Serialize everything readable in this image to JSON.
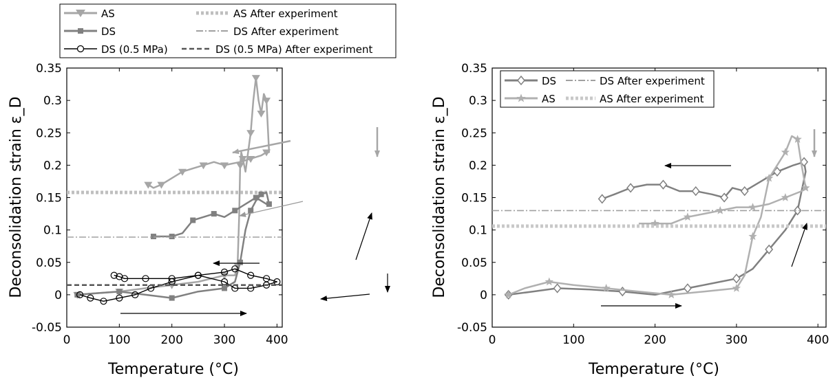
{
  "chart_data": [
    {
      "type": "line",
      "xlabel": "Temperature (°C)",
      "ylabel": "Deconsolidation strain ε_D",
      "xlim": [
        0,
        410
      ],
      "ylim": [
        -0.05,
        0.35
      ],
      "xticks": [
        0,
        100,
        200,
        300,
        400
      ],
      "yticks": [
        -0.05,
        0,
        0.05,
        0.1,
        0.15,
        0.2,
        0.25,
        0.3,
        0.35
      ],
      "ytick_labels": [
        "-0.05",
        "0",
        "0.05",
        "0.1",
        "0.15",
        "0.2",
        "0.25",
        "0.3",
        "0.35"
      ],
      "legend_position": "top (above axes)",
      "series": [
        {
          "name": "AS",
          "color": "#a6a6a6",
          "marker": "triangle-down",
          "style": "solid",
          "x": [
            20,
            50,
            100,
            150,
            200,
            250,
            300,
            320,
            325,
            328,
            330,
            332,
            335,
            340,
            350,
            355,
            360,
            365,
            370,
            375,
            380,
            385,
            380,
            370,
            350,
            330,
            300,
            280,
            260,
            240,
            220,
            200,
            180,
            165,
            155
          ],
          "y": [
            0,
            0.002,
            0.005,
            0.01,
            0.015,
            0.02,
            0.03,
            0.03,
            0.045,
            0.12,
            0.2,
            0.22,
            0.21,
            0.19,
            0.25,
            0.3,
            0.335,
            0.3,
            0.28,
            0.31,
            0.3,
            0.22,
            0.22,
            0.215,
            0.21,
            0.205,
            0.2,
            0.205,
            0.2,
            0.195,
            0.19,
            0.18,
            0.17,
            0.165,
            0.17
          ]
        },
        {
          "name": "AS After experiment",
          "color": "#bfbfbf",
          "style": "dotted",
          "x": [
            0,
            410
          ],
          "y": [
            0.158,
            0.158
          ]
        },
        {
          "name": "DS",
          "color": "#808080",
          "marker": "square",
          "style": "solid",
          "x": [
            20,
            50,
            100,
            150,
            200,
            250,
            300,
            320,
            330,
            340,
            350,
            360,
            370,
            380,
            385,
            380,
            360,
            340,
            320,
            300,
            280,
            260,
            240,
            220,
            200,
            180,
            165
          ],
          "y": [
            0,
            0.002,
            0.005,
            0,
            -0.005,
            0.005,
            0.01,
            0.02,
            0.05,
            0.1,
            0.13,
            0.145,
            0.155,
            0.158,
            0.14,
            0.14,
            0.15,
            0.14,
            0.13,
            0.12,
            0.125,
            0.12,
            0.115,
            0.095,
            0.09,
            0.09,
            0.09
          ]
        },
        {
          "name": "DS After experiment",
          "color": "#a0a0a0",
          "style": "dashdot",
          "x": [
            0,
            410
          ],
          "y": [
            0.089,
            0.089
          ]
        },
        {
          "name": "DS (0.5 MPa)",
          "color": "#000000",
          "marker": "circle",
          "style": "solid",
          "x": [
            25,
            45,
            70,
            100,
            130,
            160,
            200,
            250,
            300,
            320,
            350,
            380,
            400,
            380,
            350,
            320,
            300,
            250,
            200,
            150,
            110,
            100,
            90
          ],
          "y": [
            0,
            -0.005,
            -0.01,
            -0.005,
            0,
            0.01,
            0.02,
            0.03,
            0.035,
            0.04,
            0.03,
            0.025,
            0.02,
            0.015,
            0.01,
            0.01,
            0.02,
            0.03,
            0.025,
            0.025,
            0.025,
            0.028,
            0.03
          ]
        },
        {
          "name": "DS (0.5 MPa) After experiment",
          "color": "#555555",
          "style": "dashed",
          "x": [
            0,
            410
          ],
          "y": [
            0.015,
            0.015
          ]
        }
      ]
    },
    {
      "type": "line",
      "xlabel": "Temperature (°C)",
      "ylabel": "Deconsolidation strain ε_D",
      "xlim": [
        0,
        410
      ],
      "ylim": [
        -0.05,
        0.35
      ],
      "xticks": [
        0,
        100,
        200,
        300,
        400
      ],
      "yticks": [
        -0.05,
        0,
        0.05,
        0.1,
        0.15,
        0.2,
        0.25,
        0.3,
        0.35
      ],
      "ytick_labels": [
        "-0.05",
        "0",
        "0.05",
        "0.1",
        "0.15",
        "0.2",
        "0.25",
        "0.3",
        "0.35"
      ],
      "legend_position": "top-right",
      "series": [
        {
          "name": "DS",
          "color": "#808080",
          "marker": "diamond",
          "style": "solid",
          "x": [
            20,
            50,
            80,
            120,
            160,
            200,
            240,
            280,
            300,
            320,
            340,
            360,
            375,
            385,
            383,
            370,
            350,
            330,
            310,
            295,
            285,
            270,
            250,
            230,
            210,
            190,
            170,
            150,
            135
          ],
          "y": [
            0,
            0.005,
            0.01,
            0.008,
            0.005,
            0,
            0.01,
            0.02,
            0.025,
            0.04,
            0.07,
            0.1,
            0.13,
            0.19,
            0.205,
            0.2,
            0.19,
            0.175,
            0.16,
            0.165,
            0.15,
            0.155,
            0.16,
            0.16,
            0.17,
            0.17,
            0.165,
            0.155,
            0.148
          ]
        },
        {
          "name": "DS After experiment",
          "color": "#a0a0a0",
          "style": "dashdot",
          "x": [
            0,
            410
          ],
          "y": [
            0.13,
            0.13
          ]
        },
        {
          "name": "AS",
          "color": "#b0b0b0",
          "marker": "star",
          "style": "solid",
          "x": [
            20,
            40,
            70,
            100,
            140,
            180,
            220,
            260,
            300,
            310,
            320,
            330,
            340,
            350,
            360,
            368,
            375,
            380,
            385,
            380,
            360,
            340,
            320,
            300,
            280,
            260,
            240,
            220,
            200,
            180
          ],
          "y": [
            0,
            0.01,
            0.02,
            0.015,
            0.01,
            0.005,
            0,
            0.005,
            0.01,
            0.03,
            0.09,
            0.12,
            0.18,
            0.2,
            0.22,
            0.245,
            0.24,
            0.2,
            0.165,
            0.16,
            0.15,
            0.14,
            0.135,
            0.135,
            0.13,
            0.125,
            0.12,
            0.11,
            0.11,
            0.11
          ]
        },
        {
          "name": "AS After experiment",
          "color": "#c8c8c8",
          "style": "dotted",
          "x": [
            0,
            410
          ],
          "y": [
            0.106,
            0.106
          ]
        }
      ]
    }
  ]
}
